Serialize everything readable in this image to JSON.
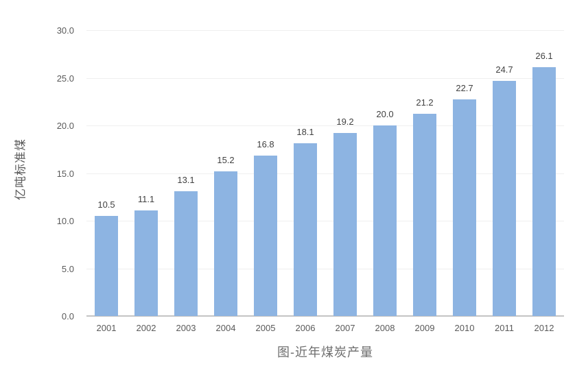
{
  "chart_data": {
    "type": "bar",
    "title": "图-近年煤炭产量",
    "title_position": "bottom-center",
    "xlabel": "",
    "ylabel": "亿吨标准煤",
    "categories": [
      "2001",
      "2002",
      "2003",
      "2004",
      "2005",
      "2006",
      "2007",
      "2008",
      "2009",
      "2010",
      "2011",
      "2012"
    ],
    "values": [
      10.5,
      11.1,
      13.1,
      15.2,
      16.8,
      18.1,
      19.2,
      20.0,
      21.2,
      22.7,
      24.7,
      26.1
    ],
    "value_labels": [
      "10.5",
      "11.1",
      "13.1",
      "15.2",
      "16.8",
      "18.1",
      "19.2",
      "20.0",
      "21.2",
      "22.7",
      "24.7",
      "26.1"
    ],
    "ylim": [
      0,
      30
    ],
    "ytick_step": 5,
    "ytick_labels": [
      "0.0",
      "5.0",
      "10.0",
      "15.0",
      "20.0",
      "25.0",
      "30.0"
    ],
    "grid": "horizontal-light",
    "legend": "none",
    "colors": {
      "bar_fill": "#8DB4E2",
      "gridline": "#EFEFEF",
      "axis_line": "#C3C3C3",
      "tick_text": "#595959",
      "value_text": "#404040",
      "title_text": "#6E6E6E"
    }
  }
}
